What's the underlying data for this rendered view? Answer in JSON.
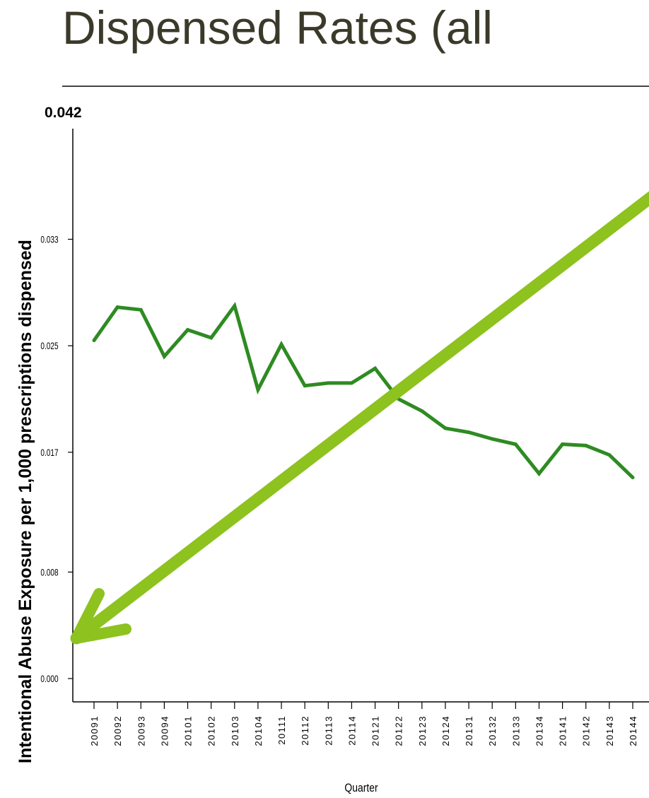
{
  "slide": {
    "title": "Dispensed Rates (all"
  },
  "chart_data": {
    "type": "line",
    "title": "",
    "xlabel": "Quarter",
    "ylabel": "Intentional Abuse Exposure per 1,000 prescriptions dispensed",
    "ylim": [
      0,
      0.042
    ],
    "y_ticks": [
      "0.000",
      "0.008",
      "0.017",
      "0.025",
      "0.033"
    ],
    "y_top_label": "0.042",
    "categories": [
      "20091",
      "20092",
      "20093",
      "20094",
      "20101",
      "20102",
      "20103",
      "20104",
      "20111",
      "20112",
      "20113",
      "20114",
      "20121",
      "20122",
      "20123",
      "20124",
      "20131",
      "20132",
      "20133",
      "20134",
      "20141",
      "20142",
      "20143",
      "20144"
    ],
    "series": [
      {
        "values": [
          0.0254,
          0.0279,
          0.0277,
          0.0242,
          0.0262,
          0.0256,
          0.028,
          0.0217,
          0.0251,
          0.022,
          0.0222,
          0.0222,
          0.0233,
          0.021,
          0.0201,
          0.0188,
          0.0185,
          0.018,
          0.0176,
          0.0154,
          0.0176,
          0.0175,
          0.0168,
          0.0151
        ],
        "color": "#2e8b22"
      }
    ],
    "trend_arrow_color": "#8dc21f",
    "axis_color": "#000000",
    "title_color": "#3b3a2a",
    "rule_color": "#444444"
  }
}
